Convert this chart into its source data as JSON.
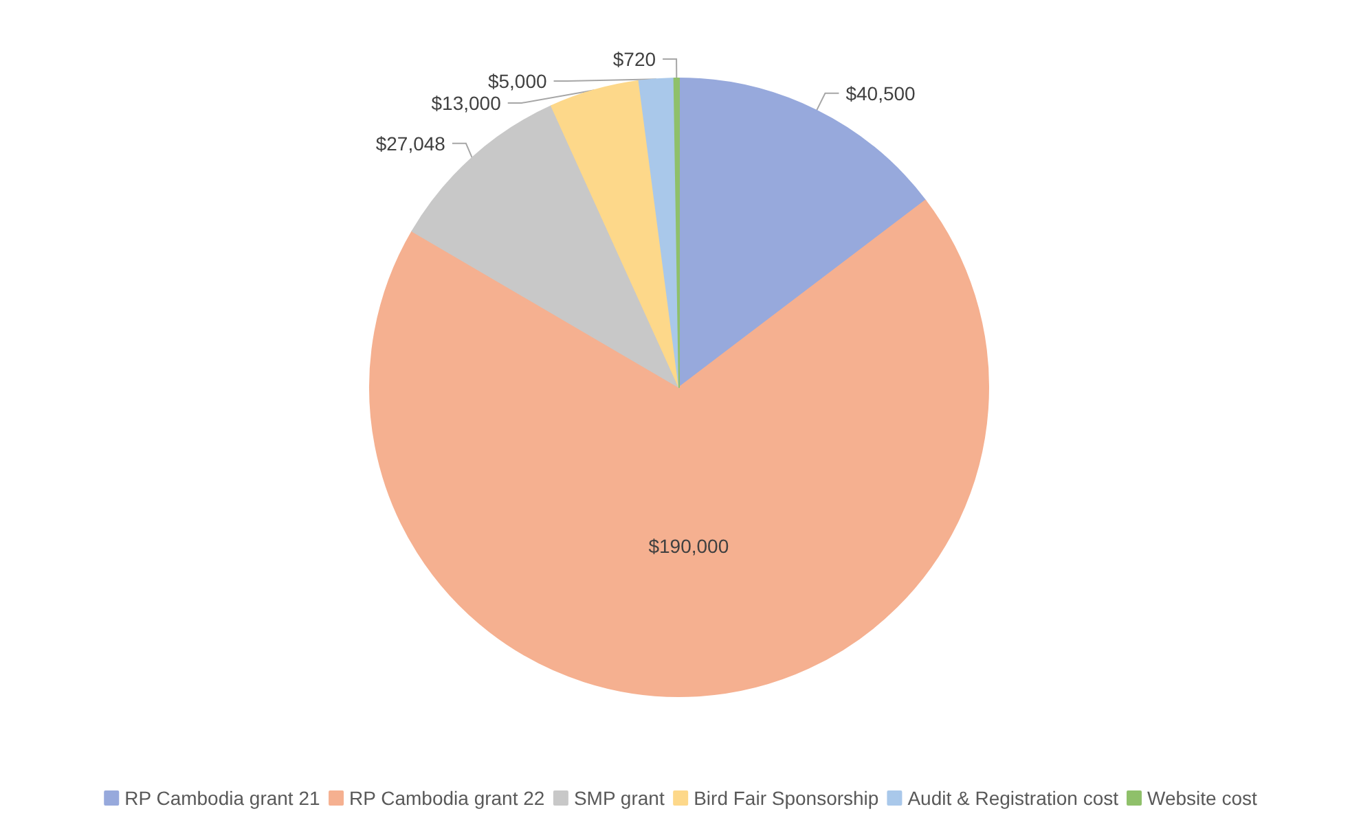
{
  "chart_data": {
    "type": "pie",
    "categories": [
      "RP Cambodia grant 21",
      "RP Cambodia grant 22",
      "SMP grant",
      "Bird Fair Sponsorship",
      "Audit & Registration cost",
      "Website cost"
    ],
    "values": [
      40500,
      190000,
      27048,
      13000,
      5000,
      720
    ],
    "value_labels": [
      "$40,500",
      "$190,000",
      "$27,048",
      "$13,000",
      "$5,000",
      "$720"
    ],
    "colors": [
      "#97a9dc",
      "#f5b090",
      "#c8c8c8",
      "#fdd88a",
      "#a9c8ea",
      "#8fc06a"
    ],
    "legend": "bottom"
  }
}
